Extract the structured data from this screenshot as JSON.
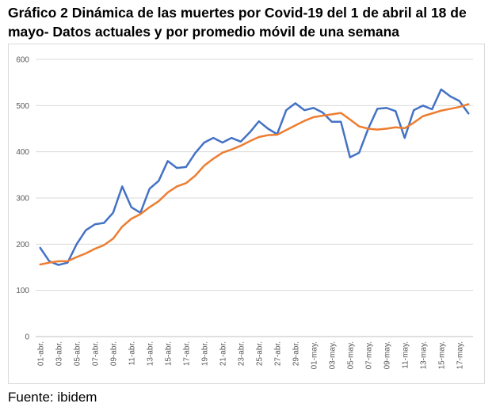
{
  "chart_data": {
    "type": "line",
    "title": "Gráfico 2 Dinámica de las muertes por Covid-19 del 1 de abril al 18 de mayo- Datos actuales y por promedio móvil de una semana",
    "source": "Fuente: ibidem",
    "categories": [
      "01-abr.",
      null,
      "03-abr.",
      null,
      "05-abr.",
      null,
      "07-abr.",
      null,
      "09-abr.",
      null,
      "11-abr.",
      null,
      "13-abr.",
      null,
      "15-abr.",
      null,
      "17-abr.",
      null,
      "19-abr.",
      null,
      "21-abr.",
      null,
      "23-abr.",
      null,
      "25-abr.",
      null,
      "27-abr.",
      null,
      "29-abr.",
      null,
      "01-may.",
      null,
      "03-may.",
      null,
      "05-may.",
      null,
      "07-may.",
      null,
      "09-may.",
      null,
      "11-may.",
      null,
      "13-may.",
      null,
      "15-may.",
      null,
      "17-may.",
      null
    ],
    "series": [
      {
        "color": "#4472c4",
        "values": [
          192,
          163,
          155,
          160,
          200,
          230,
          243,
          246,
          268,
          325,
          280,
          268,
          320,
          337,
          380,
          365,
          367,
          397,
          420,
          430,
          420,
          430,
          422,
          442,
          466,
          450,
          438,
          490,
          505,
          490,
          495,
          485,
          465,
          465,
          388,
          398,
          450,
          493,
          495,
          488,
          430,
          490,
          500,
          492,
          535,
          520,
          510,
          483
        ]
      },
      {
        "color": "#ed7d31",
        "values": [
          156,
          160,
          163,
          163,
          172,
          180,
          190,
          198,
          212,
          238,
          255,
          265,
          280,
          293,
          312,
          325,
          332,
          348,
          370,
          385,
          398,
          405,
          413,
          423,
          432,
          436,
          437,
          447,
          457,
          467,
          475,
          478,
          481,
          484,
          470,
          455,
          450,
          448,
          450,
          453,
          451,
          463,
          477,
          483,
          489,
          493,
          497,
          503
        ]
      }
    ],
    "ylim": [
      0,
      600
    ],
    "yticks": [
      0,
      100,
      200,
      300,
      400,
      500,
      600
    ],
    "grid": true
  }
}
